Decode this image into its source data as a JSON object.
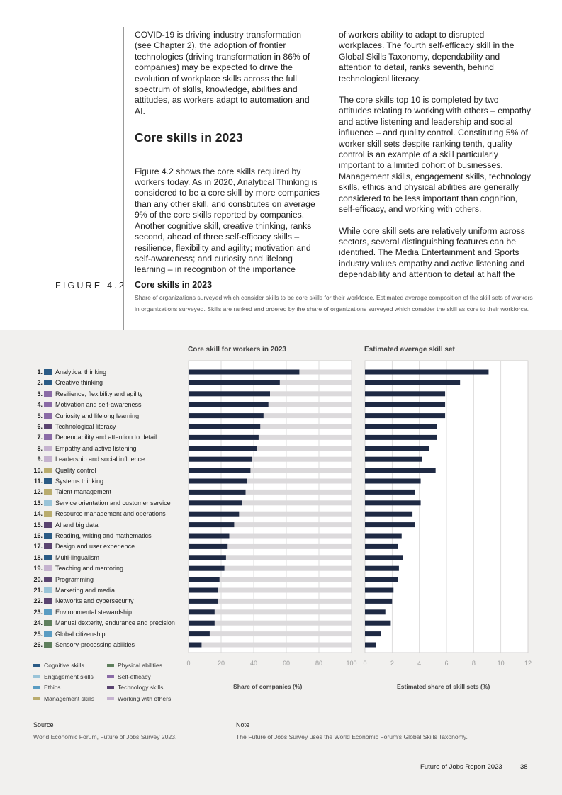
{
  "body_text": {
    "left_intro": "COVID-19 is driving industry transformation (see Chapter 2), the adoption of frontier technologies (driving transformation in 86% of companies) may be expected to drive the evolution of workplace skills across the full spectrum of skills, knowledge, abilities and attitudes, as workers adapt to automation and AI.",
    "heading": "Core skills in 2023",
    "left_para": "Figure 4.2 shows the core skills required by workers today. As in 2020, Analytical Thinking is considered to be a core skill by more companies than any other skill, and constitutes on average 9% of the core skills reported by companies. Another cognitive skill, creative thinking, ranks second, ahead of three self-efficacy skills – resilience, flexibility and agility; motivation and self-awareness; and curiosity and lifelong learning – in recognition of the importance",
    "right_para1": "of workers ability to adapt to disrupted workplaces. The fourth self-efficacy skill in the Global Skills Taxonomy, dependability and attention to detail, ranks seventh, behind technological literacy.",
    "right_para2": "The core skills top 10 is completed by two attitudes relating to working with others – empathy and active listening and leadership and social influence – and quality control. Constituting 5% of worker skill sets despite ranking tenth, quality control is an example of a skill particularly important to a limited cohort of businesses. Management skills, engagement skills, technology skills, ethics and physical abilities are generally considered to be less important than cognition, self-efficacy, and working with others.",
    "right_para3": "While core skill sets are relatively uniform across sectors, several distinguishing features can be identified. The Media Entertainment and Sports industry values empathy and active listening and dependability and attention to detail at half the"
  },
  "figure": {
    "label": "FIGURE 4.2",
    "title": "Core skills in 2023",
    "subtitle": "Share of organizations surveyed which consider skills to be core skills for their workforce. Estimated average composition of the skill sets of  workers in organizations surveyed. Skills are ranked and ordered by the share of organizations surveyed which consider the skill as core to their workforce."
  },
  "colors": {
    "Cognitive skills": "#2b5b85",
    "Engagement skills": "#9ac4d8",
    "Ethics": "#5a9cc2",
    "Management skills": "#b9ac6e",
    "Physical abilities": "#5f7f5d",
    "Self-efficacy": "#8a6ba6",
    "Technology skills": "#5a4470",
    "Working with others": "#c5b3cf",
    "bar": "#1f2a44",
    "track": "#dcdadc"
  },
  "chart_data": {
    "type": "bar",
    "orientation": "horizontal",
    "left_title": "Core skill for workers in 2023",
    "right_title": "Estimated average skill set",
    "left_xlabel": "Share of companies (%)",
    "right_xlabel": "Estimated share of skill sets (%)",
    "left_xlim": [
      0,
      100
    ],
    "right_xlim": [
      0,
      12
    ],
    "left_ticks": [
      "0",
      "20",
      "40",
      "60",
      "80",
      "100"
    ],
    "right_ticks": [
      "0",
      "2",
      "4",
      "6",
      "8",
      "10",
      "12"
    ],
    "skills": [
      {
        "rank": "1.",
        "name": "Analytical thinking",
        "category": "Cognitive skills",
        "share_companies": 68,
        "skill_set": 9.1
      },
      {
        "rank": "2.",
        "name": "Creative thinking",
        "category": "Cognitive skills",
        "share_companies": 56,
        "skill_set": 7.0
      },
      {
        "rank": "3.",
        "name": "Resilience, flexibility and agility",
        "category": "Self-efficacy",
        "share_companies": 50,
        "skill_set": 5.9
      },
      {
        "rank": "4.",
        "name": "Motivation and self-awareness",
        "category": "Self-efficacy",
        "share_companies": 49,
        "skill_set": 5.9
      },
      {
        "rank": "5.",
        "name": "Curiosity and lifelong learning",
        "category": "Self-efficacy",
        "share_companies": 46,
        "skill_set": 5.9
      },
      {
        "rank": "6.",
        "name": "Technological literacy",
        "category": "Technology skills",
        "share_companies": 44,
        "skill_set": 5.3
      },
      {
        "rank": "7.",
        "name": "Dependability and attention to detail",
        "category": "Self-efficacy",
        "share_companies": 43,
        "skill_set": 5.3
      },
      {
        "rank": "8.",
        "name": "Empathy and active listening",
        "category": "Working with others",
        "share_companies": 42,
        "skill_set": 4.7
      },
      {
        "rank": "9.",
        "name": "Leadership and social influence",
        "category": "Working with others",
        "share_companies": 39,
        "skill_set": 4.2
      },
      {
        "rank": "10.",
        "name": "Quality control",
        "category": "Management skills",
        "share_companies": 38,
        "skill_set": 5.2
      },
      {
        "rank": "11.",
        "name": "Systems thinking",
        "category": "Cognitive skills",
        "share_companies": 36,
        "skill_set": 4.1
      },
      {
        "rank": "12.",
        "name": "Talent management",
        "category": "Management skills",
        "share_companies": 35,
        "skill_set": 3.7
      },
      {
        "rank": "13.",
        "name": "Service orientation and customer service",
        "category": "Engagement skills",
        "share_companies": 33,
        "skill_set": 4.1
      },
      {
        "rank": "14.",
        "name": "Resource management and operations",
        "category": "Management skills",
        "share_companies": 31,
        "skill_set": 3.5
      },
      {
        "rank": "15.",
        "name": "AI and big data",
        "category": "Technology skills",
        "share_companies": 28,
        "skill_set": 3.7
      },
      {
        "rank": "16.",
        "name": "Reading, writing and mathematics",
        "category": "Cognitive skills",
        "share_companies": 25,
        "skill_set": 2.7
      },
      {
        "rank": "17.",
        "name": "Design and user experience",
        "category": "Technology skills",
        "share_companies": 24,
        "skill_set": 2.4
      },
      {
        "rank": "18.",
        "name": "Multi-lingualism",
        "category": "Cognitive skills",
        "share_companies": 23,
        "skill_set": 2.8
      },
      {
        "rank": "19.",
        "name": "Teaching and mentoring",
        "category": "Working with others",
        "share_companies": 22,
        "skill_set": 2.5
      },
      {
        "rank": "20.",
        "name": "Programming",
        "category": "Technology skills",
        "share_companies": 19,
        "skill_set": 2.4
      },
      {
        "rank": "21.",
        "name": "Marketing and media",
        "category": "Engagement skills",
        "share_companies": 18,
        "skill_set": 2.1
      },
      {
        "rank": "22.",
        "name": "Networks and cybersecurity",
        "category": "Technology skills",
        "share_companies": 18,
        "skill_set": 2.0
      },
      {
        "rank": "23.",
        "name": "Environmental stewardship",
        "category": "Ethics",
        "share_companies": 16,
        "skill_set": 1.5
      },
      {
        "rank": "24.",
        "name": "Manual dexterity, endurance and precision",
        "category": "Physical abilities",
        "share_companies": 16,
        "skill_set": 1.9
      },
      {
        "rank": "25.",
        "name": "Global citizenship",
        "category": "Ethics",
        "share_companies": 13,
        "skill_set": 1.2
      },
      {
        "rank": "26.",
        "name": "Sensory-processing abilities",
        "category": "Physical abilities",
        "share_companies": 8,
        "skill_set": 0.8
      }
    ],
    "legend": [
      {
        "label": "Cognitive skills"
      },
      {
        "label": "Engagement skills"
      },
      {
        "label": "Ethics"
      },
      {
        "label": "Management skills"
      },
      {
        "label": "Physical abilities"
      },
      {
        "label": "Self-efficacy"
      },
      {
        "label": "Technology skills"
      },
      {
        "label": "Working with others"
      }
    ]
  },
  "source": {
    "source_label": "Source",
    "source_text": "World Economic Forum, Future of Jobs Survey 2023.",
    "note_label": "Note",
    "note_text": "The Future of Jobs Survey uses the World Economic Forum's Global Skills Taxonomy."
  },
  "footer": {
    "report": "Future of Jobs Report 2023",
    "page": "38"
  }
}
